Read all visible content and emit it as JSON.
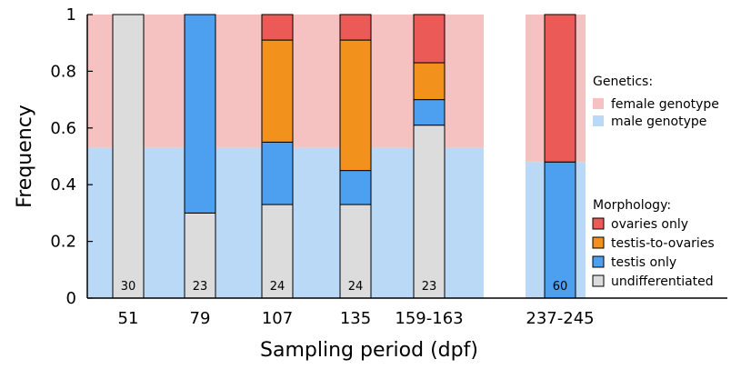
{
  "chart_data": {
    "type": "bar",
    "xlabel": "Sampling period (dpf)",
    "ylabel": "Frequency",
    "ylim": [
      0,
      1
    ],
    "yticks": [
      "0",
      "0.2",
      "0.4",
      "0.6",
      "0.8",
      "1"
    ],
    "genetics": {
      "title": "Genetics:",
      "entries": [
        {
          "name": "female genotype",
          "color": "#f6c1c1"
        },
        {
          "name": "male genotype",
          "color": "#b9d9f7"
        }
      ],
      "segments": [
        {
          "male_fraction": 0.53
        },
        {
          "male_fraction": 0.53
        },
        {
          "male_fraction": 0.53
        },
        {
          "male_fraction": 0.53
        },
        {
          "male_fraction": 0.53
        },
        {
          "male_fraction": 0.48
        }
      ]
    },
    "morphology": {
      "title": "Morphology:",
      "entries": [
        {
          "name": "ovaries only",
          "color": "#eb5a57"
        },
        {
          "name": "testis-to-ovaries",
          "color": "#f2911c"
        },
        {
          "name": "testis only",
          "color": "#4d9ff0"
        },
        {
          "name": "undifferentiated",
          "color": "#dcdcdc"
        }
      ]
    },
    "categories": [
      "51",
      "79",
      "107",
      "135",
      "159-163",
      "237-245"
    ],
    "series": [
      {
        "name": "undifferentiated",
        "values": [
          1.0,
          0.3,
          0.33,
          0.33,
          0.61,
          0.0
        ]
      },
      {
        "name": "testis only",
        "values": [
          0.0,
          0.7,
          0.22,
          0.12,
          0.09,
          0.48
        ]
      },
      {
        "name": "testis-to-ovaries",
        "values": [
          0.0,
          0.0,
          0.36,
          0.46,
          0.13,
          0.0
        ]
      },
      {
        "name": "ovaries only",
        "values": [
          0.0,
          0.0,
          0.09,
          0.09,
          0.17,
          0.52
        ]
      }
    ],
    "counts": [
      "30",
      "23",
      "24",
      "24",
      "23",
      "60"
    ]
  }
}
